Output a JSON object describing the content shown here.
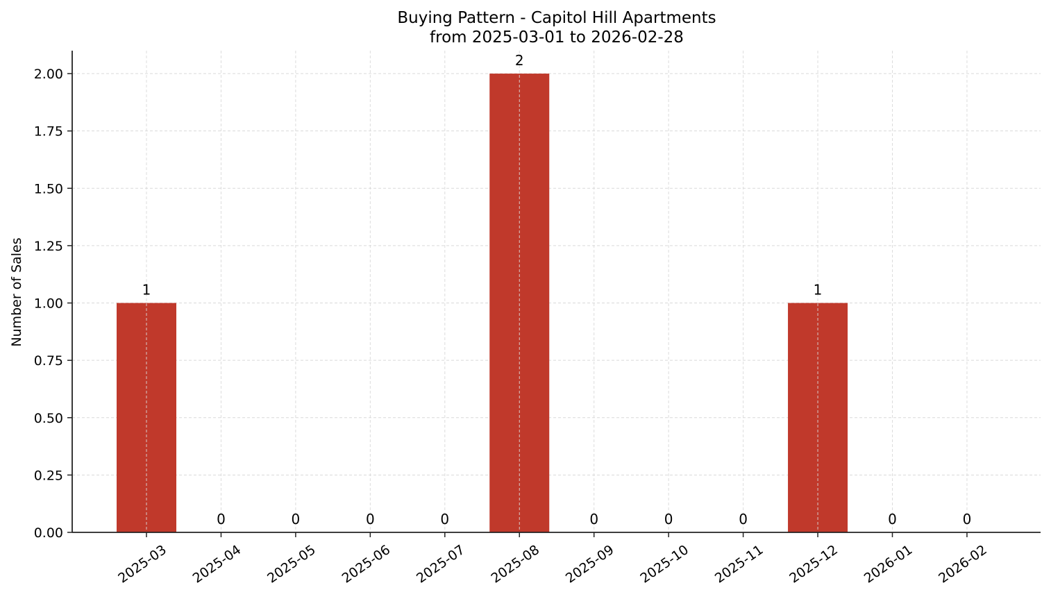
{
  "chart_data": {
    "type": "bar",
    "title": "Buying Pattern - Capitol Hill Apartments",
    "subtitle": "from 2025-03-01 to 2026-02-28",
    "xlabel": "",
    "ylabel": "Number of Sales",
    "categories": [
      "2025-03",
      "2025-04",
      "2025-05",
      "2025-06",
      "2025-07",
      "2025-08",
      "2025-09",
      "2025-10",
      "2025-11",
      "2025-12",
      "2026-01",
      "2026-02"
    ],
    "values": [
      1,
      0,
      0,
      0,
      0,
      2,
      0,
      0,
      0,
      1,
      0,
      0
    ],
    "data_labels": [
      "1",
      "0",
      "0",
      "0",
      "0",
      "2",
      "0",
      "0",
      "0",
      "1",
      "0",
      "0"
    ],
    "ylim": [
      0,
      2.1
    ],
    "yticks": [
      "0.00",
      "0.25",
      "0.50",
      "0.75",
      "1.00",
      "1.25",
      "1.50",
      "1.75",
      "2.00"
    ],
    "ytick_values": [
      0,
      0.25,
      0.5,
      0.75,
      1.0,
      1.25,
      1.5,
      1.75,
      2.0
    ],
    "grid": true,
    "legend": null,
    "bar_color": "#c0392b",
    "grid_color": "#d9d9d9",
    "axis_color": "#222222"
  }
}
